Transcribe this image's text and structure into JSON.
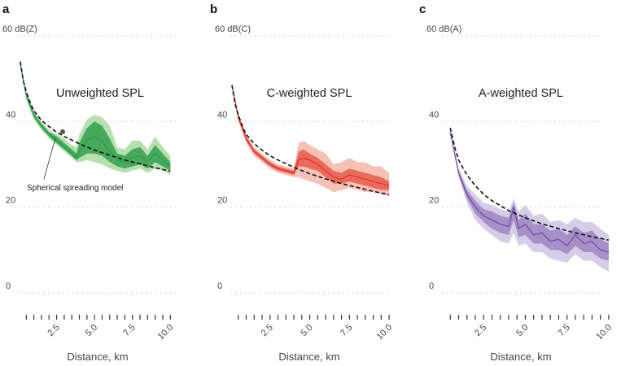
{
  "panels": [
    {
      "letter": "a",
      "unit_label": "60 dB(Z)",
      "title": "Unweighted SPL",
      "annotation": "Spherical spreading model",
      "xlabel": "Distance, km",
      "color_line": "#2e9e4f",
      "color_inner": "#46a95c",
      "color_outer": "#b7dfb0"
    },
    {
      "letter": "b",
      "unit_label": "60 dB(C)",
      "title": "C-weighted SPL",
      "xlabel": "Distance, km",
      "color_line": "#e2372e",
      "color_inner": "#ea6a5c",
      "color_outer": "#f7c2b6"
    },
    {
      "letter": "c",
      "unit_label": "60 dB(A)",
      "title": "A-weighted SPL",
      "xlabel": "Distance, km",
      "color_line": "#7d4a9e",
      "color_inner": "#a590c8",
      "color_outer": "#d6cde8"
    }
  ],
  "chart_data": [
    {
      "type": "line",
      "title": "Unweighted SPL",
      "xlabel": "Distance, km",
      "ylabel": "dB(Z)",
      "xlim": [
        0,
        10.2
      ],
      "ylim": [
        0,
        60
      ],
      "y_ticks": [
        "0",
        "20",
        "40"
      ],
      "x_ticks": [
        "2.5",
        "5.0",
        "7.5",
        "10.0"
      ],
      "grid": true,
      "series": [
        {
          "name": "Spherical spreading model",
          "style": "dashed",
          "x": [
            0.1,
            0.3,
            0.5,
            0.8,
            1.0,
            1.5,
            2.0,
            2.5,
            3.0,
            4.0,
            5.0,
            6.0,
            7.0,
            8.0,
            9.0,
            10.0
          ],
          "y": [
            54,
            49.5,
            47,
            44,
            42.5,
            40.3,
            38.8,
            37.5,
            36.5,
            34.8,
            33.3,
            32.1,
            31.0,
            30.1,
            29.2,
            28.4
          ]
        },
        {
          "style": "solid",
          "x": [
            0.1,
            0.5,
            1.0,
            1.5,
            2.0,
            2.5,
            3.0,
            3.5,
            3.8,
            4.0,
            4.5,
            5.0,
            5.5,
            6.0,
            6.5,
            7.0,
            7.5,
            8.0,
            8.5,
            9.0,
            9.5,
            10.0
          ],
          "y": [
            53.5,
            46,
            41.5,
            39,
            37,
            35.5,
            34,
            32.5,
            31.5,
            33,
            35.5,
            36.5,
            35.5,
            33,
            31,
            30.5,
            31.5,
            32,
            30.5,
            32.5,
            31,
            29.5
          ],
          "band_inner_low": [
            53.5,
            45.5,
            41,
            38.5,
            36.5,
            35,
            33.5,
            32,
            31,
            31.5,
            32.5,
            32.5,
            32,
            30.5,
            29.5,
            29,
            29.5,
            30,
            29,
            30.5,
            29.5,
            28.5
          ],
          "band_inner_high": [
            53.5,
            46.5,
            42,
            39.5,
            37.5,
            36.5,
            35,
            33.5,
            32.5,
            35,
            38.5,
            40,
            39,
            36,
            32.5,
            32,
            33.5,
            34,
            32,
            34.5,
            32.5,
            30.5
          ],
          "band_outer_low": [
            53.5,
            45,
            40.5,
            38,
            36,
            34.5,
            33,
            31.5,
            30.5,
            30.5,
            31,
            30.5,
            30,
            29,
            28.5,
            28,
            28.5,
            29,
            28,
            29,
            28.5,
            27.5
          ],
          "band_outer_high": [
            53.5,
            47,
            42.5,
            40,
            38,
            37,
            36,
            34.5,
            34,
            37,
            40.5,
            41.5,
            41,
            39,
            34,
            33.5,
            35.5,
            35.5,
            33.5,
            36.5,
            34,
            32
          ]
        }
      ]
    },
    {
      "type": "line",
      "title": "C-weighted SPL",
      "xlabel": "Distance, km",
      "ylabel": "dB(C)",
      "xlim": [
        0,
        10.2
      ],
      "ylim": [
        0,
        60
      ],
      "y_ticks": [
        "0",
        "20",
        "40"
      ],
      "x_ticks": [
        "2.5",
        "5.0",
        "7.5",
        "10.0"
      ],
      "grid": true,
      "series": [
        {
          "style": "dashed",
          "x": [
            0.1,
            0.3,
            0.5,
            0.8,
            1.0,
            1.5,
            2.0,
            2.5,
            3.0,
            4.0,
            5.0,
            6.0,
            7.0,
            8.0,
            9.0,
            10.0
          ],
          "y": [
            48.5,
            44,
            41.5,
            38.5,
            37,
            34.8,
            33.3,
            32,
            31,
            29.3,
            27.8,
            26.6,
            25.5,
            24.6,
            23.7,
            22.9
          ]
        },
        {
          "style": "solid",
          "x": [
            0.1,
            0.5,
            1.0,
            1.5,
            2.0,
            2.5,
            3.0,
            3.5,
            4.0,
            4.3,
            4.6,
            5.0,
            5.5,
            6.0,
            6.5,
            7.0,
            7.5,
            8.0,
            8.5,
            9.0,
            9.5,
            10.0
          ],
          "y": [
            48.5,
            41,
            36,
            33,
            31.5,
            30,
            29,
            28.5,
            28,
            31,
            31.5,
            31,
            30,
            28.5,
            27,
            26.5,
            27.5,
            27,
            26.5,
            26,
            25.5,
            25
          ],
          "band_inner_low": [
            48.5,
            40.5,
            35.5,
            32.5,
            31,
            29.5,
            28.5,
            28,
            27.5,
            29.5,
            29.5,
            29,
            28.5,
            27,
            25.5,
            25.5,
            26,
            25.5,
            25,
            24.5,
            24,
            24
          ],
          "band_inner_high": [
            48.5,
            41.5,
            36.5,
            33.5,
            32,
            30.5,
            29.5,
            29,
            28.5,
            33,
            33.5,
            32.5,
            31.5,
            30,
            28.5,
            28,
            29,
            28.5,
            28,
            27.5,
            27,
            26
          ],
          "band_outer_low": [
            48.5,
            40,
            35,
            32,
            30.5,
            29,
            28,
            27.5,
            27,
            27,
            26.5,
            26,
            25.5,
            24.5,
            23.5,
            24,
            24.5,
            24,
            23.5,
            23.5,
            23,
            22.5
          ],
          "band_outer_high": [
            48.5,
            42,
            37,
            34,
            32.5,
            31,
            30,
            29.5,
            29,
            35,
            35.5,
            34.5,
            33.5,
            32.5,
            30,
            30.5,
            31.5,
            30.5,
            30.5,
            29.5,
            29.5,
            28
          ]
        }
      ]
    },
    {
      "type": "line",
      "title": "A-weighted SPL",
      "xlabel": "Distance, km",
      "ylabel": "dB(A)",
      "xlim": [
        0,
        10.2
      ],
      "ylim": [
        0,
        60
      ],
      "y_ticks": [
        "0",
        "20",
        "40"
      ],
      "x_ticks": [
        "2.5",
        "5.0",
        "7.5",
        "10.0"
      ],
      "grid": true,
      "series": [
        {
          "style": "dashed",
          "x": [
            0.5,
            0.8,
            1.0,
            1.5,
            2.0,
            2.5,
            3.0,
            4.0,
            5.0,
            6.0,
            7.0,
            8.0,
            9.0,
            10.0
          ],
          "y": [
            38.5,
            33.5,
            31,
            27.5,
            25,
            23,
            21.5,
            19.2,
            17.5,
            16.1,
            15,
            14,
            13.1,
            12.3
          ]
        },
        {
          "style": "solid",
          "x": [
            0.5,
            1.0,
            1.5,
            2.0,
            2.5,
            3.0,
            3.5,
            4.0,
            4.3,
            4.6,
            5.0,
            5.5,
            6.0,
            6.5,
            7.0,
            7.5,
            8.0,
            8.5,
            9.0,
            9.5,
            10.0
          ],
          "y": [
            37.5,
            28,
            23,
            20,
            18,
            17,
            16,
            15.5,
            20,
            15,
            16,
            13.5,
            14,
            12,
            12.5,
            11,
            13.5,
            11.5,
            12,
            10,
            9.5
          ],
          "band_inner_low": [
            37.5,
            27.5,
            22,
            18.5,
            16.5,
            15,
            14,
            13.5,
            17,
            13,
            13.5,
            11.5,
            11.5,
            10,
            10,
            9,
            11,
            9.5,
            9.5,
            8,
            7.5
          ],
          "band_inner_high": [
            37.5,
            28.5,
            24,
            21.5,
            19.5,
            19,
            18,
            17.5,
            21,
            17,
            18.5,
            16,
            16,
            14.5,
            15,
            13.5,
            15.5,
            14,
            14.5,
            12.5,
            11.5
          ],
          "band_outer_low": [
            37.5,
            27,
            21,
            17,
            15,
            13.5,
            12,
            11.5,
            14,
            11,
            11.5,
            9.5,
            9.5,
            8,
            7.5,
            7,
            9,
            7.5,
            7.5,
            6,
            5
          ],
          "band_outer_high": [
            37.5,
            29,
            25,
            23,
            21,
            20.5,
            19.5,
            19,
            22,
            19,
            20.5,
            18,
            18.5,
            16.5,
            17,
            16,
            17.5,
            16.5,
            16.5,
            15,
            13.5
          ]
        }
      ]
    }
  ]
}
